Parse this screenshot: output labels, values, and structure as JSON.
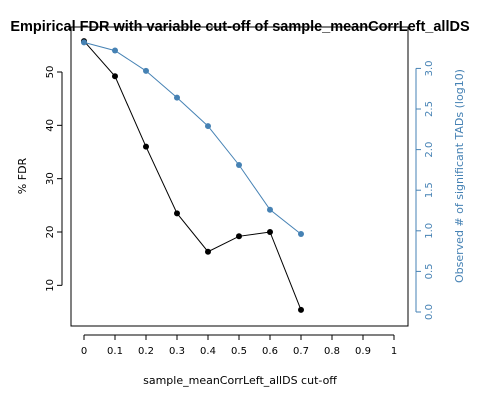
{
  "chart_data": {
    "type": "line",
    "title": "Empirical FDR with variable cut-off of sample_meanCorrLeft_allDS",
    "xlabel": "sample_meanCorrLeft_allDS cut-off",
    "ylabel": "% FDR",
    "ylabel_right": "Observed # of significant TADs (log10)",
    "xlim": [
      0,
      1
    ],
    "ylim": [
      5,
      56
    ],
    "ylim_right": [
      0,
      3.35
    ],
    "x_ticks": [
      0,
      0.1,
      0.2,
      0.3,
      0.4,
      0.5,
      0.6,
      0.7,
      0.8,
      0.9,
      1
    ],
    "x_tick_labels": [
      "0",
      "0.1",
      "0.2",
      "0.3",
      "0.4",
      "0.5",
      "0.6",
      "0.7",
      "0.8",
      "0.9",
      "1"
    ],
    "y_ticks": [
      10,
      20,
      30,
      40,
      50
    ],
    "y_tick_labels": [
      "10",
      "20",
      "30",
      "40",
      "50"
    ],
    "y_right_ticks": [
      0,
      0.5,
      1,
      1.5,
      2,
      2.5,
      3
    ],
    "y_right_tick_labels": [
      "0.0",
      "0.5",
      "1.0",
      "1.5",
      "2.0",
      "2.5",
      "3.0"
    ],
    "grid": false,
    "series": [
      {
        "axis": "left",
        "color": "#000000",
        "x": [
          0,
          0.1,
          0.2,
          0.3,
          0.4,
          0.5,
          0.6,
          0.7
        ],
        "values": [
          55.8,
          49.2,
          36.0,
          23.5,
          16.3,
          19.2,
          20.0,
          5.4
        ]
      },
      {
        "axis": "right",
        "color": "#4682b4",
        "x": [
          0,
          0.1,
          0.2,
          0.3,
          0.4,
          0.5,
          0.6,
          0.7
        ],
        "values": [
          3.32,
          3.22,
          2.97,
          2.64,
          2.29,
          1.81,
          1.26,
          0.96
        ]
      }
    ]
  }
}
